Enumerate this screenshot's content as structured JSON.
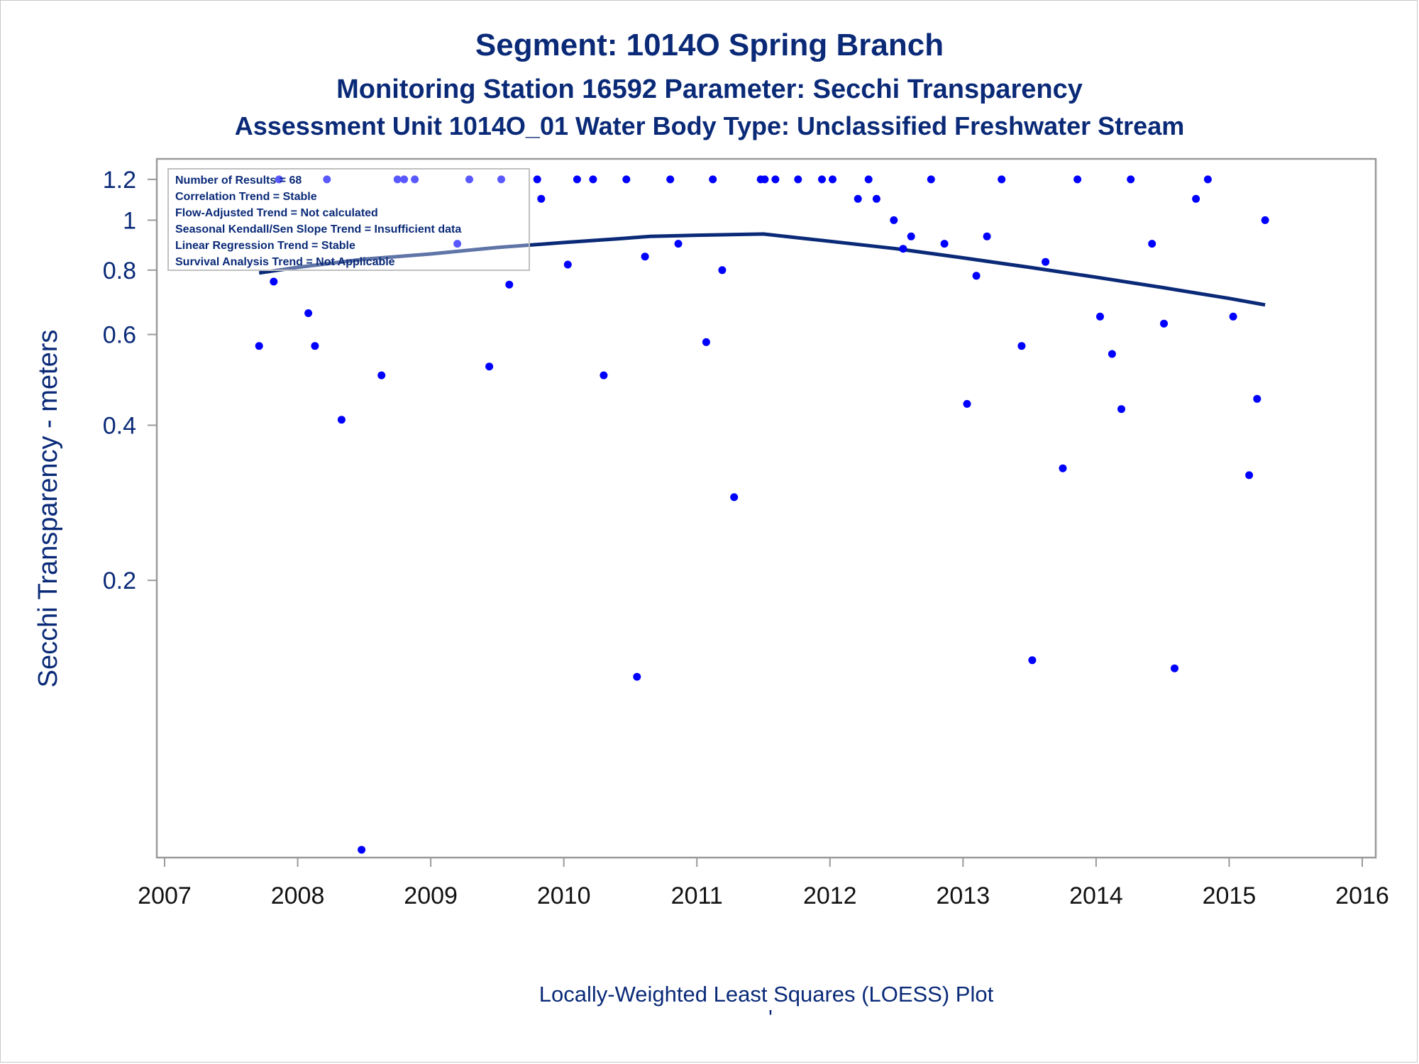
{
  "titles": {
    "line1": "Segment: 1014O  Spring Branch",
    "line2": "Monitoring Station 16592 Parameter: Secchi Transparency",
    "line3": "Assessment Unit 1014O_01   Water Body Type: Unclassified Freshwater Stream"
  },
  "footnote": "Locally-Weighted Least Squares (LOESS) Plot",
  "footnote_mark": "'",
  "stats_box": [
    "Number of Results = 68",
    "Correlation Trend = Stable",
    "Flow-Adjusted Trend = Not calculated",
    "Seasonal Kendall/Sen Slope Trend = Insufficient data",
    "Linear Regression Trend = Stable",
    "Survival Analysis Trend = Not Applicable"
  ],
  "colors": {
    "title": "#0a2a78",
    "markers": "#0000ff",
    "loess_line": "#0a2a78",
    "axis_frame": "#9a9a9a",
    "y_tick_text": "#0a2a78",
    "x_tick_text": "#111111"
  },
  "chart_data": {
    "type": "scatter",
    "title": "Segment: 1014O  Spring Branch",
    "xlabel": "",
    "ylabel": "Secchi Transparency - meters",
    "y_scale": "log",
    "xlim": [
      2007,
      2016
    ],
    "ylim": [
      0.06,
      1.25
    ],
    "x_ticks": [
      2007,
      2008,
      2009,
      2010,
      2011,
      2012,
      2013,
      2014,
      2015,
      2016
    ],
    "y_ticks": [
      0.2,
      0.4,
      0.6,
      0.8,
      1,
      1.2
    ],
    "y_tick_labels": [
      "0.2",
      "0.4",
      "0.6",
      "0.8",
      "1",
      "1.2"
    ],
    "grid": false,
    "series": [
      {
        "type": "scatter",
        "x": [
          2007.71,
          2007.82,
          2007.86,
          2008.08,
          2008.13,
          2008.22,
          2008.33,
          2008.48,
          2008.63,
          2008.75,
          2008.8,
          2008.88,
          2009.2,
          2009.29,
          2009.44,
          2009.53,
          2009.59,
          2009.8,
          2009.83,
          2010.03,
          2010.1,
          2010.22,
          2010.3,
          2010.47,
          2010.55,
          2010.61,
          2010.8,
          2010.86,
          2011.07,
          2011.12,
          2011.19,
          2011.28,
          2011.48,
          2011.51,
          2011.59,
          2011.76,
          2011.94,
          2012.02,
          2012.21,
          2012.29,
          2012.35,
          2012.48,
          2012.55,
          2012.61,
          2012.76,
          2012.86,
          2013.03,
          2013.1,
          2013.18,
          2013.29,
          2013.44,
          2013.52,
          2013.62,
          2013.75,
          2013.86,
          2014.03,
          2014.12,
          2014.19,
          2014.26,
          2014.42,
          2014.51,
          2014.59,
          2014.75,
          2014.84,
          2015.03,
          2015.15,
          2015.21,
          2015.27
        ],
        "y": [
          0.57,
          0.76,
          1.2,
          0.66,
          0.57,
          1.2,
          0.41,
          0.06,
          0.5,
          1.2,
          1.2,
          1.2,
          0.9,
          1.2,
          0.52,
          1.2,
          0.75,
          1.2,
          1.1,
          0.82,
          1.2,
          1.2,
          0.5,
          1.2,
          0.13,
          0.85,
          1.2,
          0.9,
          0.58,
          1.2,
          0.8,
          0.29,
          1.2,
          1.2,
          1.2,
          1.2,
          1.2,
          1.2,
          1.1,
          1.2,
          1.1,
          1.0,
          0.88,
          0.93,
          1.2,
          0.9,
          0.44,
          0.78,
          0.93,
          1.2,
          0.57,
          0.14,
          0.83,
          0.33,
          1.2,
          0.65,
          0.55,
          0.43,
          1.2,
          0.9,
          0.63,
          0.135,
          1.1,
          1.2,
          0.65,
          0.32,
          0.45,
          1.0
        ]
      },
      {
        "type": "line",
        "name": "LOESS",
        "x": [
          2007.71,
          2008.0,
          2008.5,
          2009.0,
          2009.5,
          2010.0,
          2010.4,
          2010.65,
          2011.0,
          2011.5,
          2012.0,
          2012.5,
          2013.0,
          2013.5,
          2014.0,
          2014.5,
          2015.0,
          2015.27
        ],
        "y": [
          0.79,
          0.81,
          0.84,
          0.86,
          0.885,
          0.905,
          0.92,
          0.93,
          0.935,
          0.94,
          0.91,
          0.88,
          0.845,
          0.81,
          0.775,
          0.74,
          0.705,
          0.685
        ]
      }
    ]
  }
}
